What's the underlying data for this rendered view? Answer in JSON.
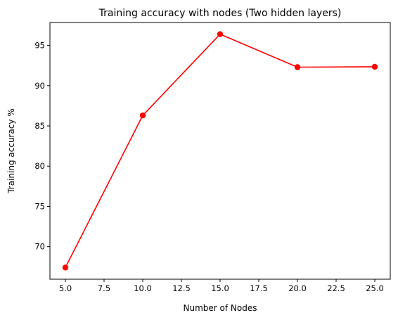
{
  "chart_data": {
    "type": "line",
    "title": "Training accuracy with nodes (Two hidden layers)",
    "xlabel": "Number of Nodes",
    "ylabel": "Training accuracy %",
    "x": [
      5,
      10,
      15,
      20,
      25
    ],
    "series": [
      {
        "values": [
          67.4,
          86.3,
          96.4,
          92.3,
          92.35
        ],
        "color": "#ff0000",
        "marker": "circle"
      }
    ],
    "xlim": [
      4.0,
      26.0
    ],
    "ylim": [
      65.95,
      97.85
    ],
    "xticks": [
      5,
      7.5,
      10,
      12.5,
      15,
      17.5,
      20,
      22.5,
      25
    ],
    "xtick_labels": [
      "5.0",
      "7.5",
      "10.0",
      "12.5",
      "15.0",
      "17.5",
      "20.0",
      "22.5",
      "25.0"
    ],
    "yticks": [
      70,
      75,
      80,
      85,
      90,
      95
    ],
    "ytick_labels": [
      "70",
      "75",
      "80",
      "85",
      "90",
      "95"
    ],
    "grid": false,
    "legend": "none"
  }
}
